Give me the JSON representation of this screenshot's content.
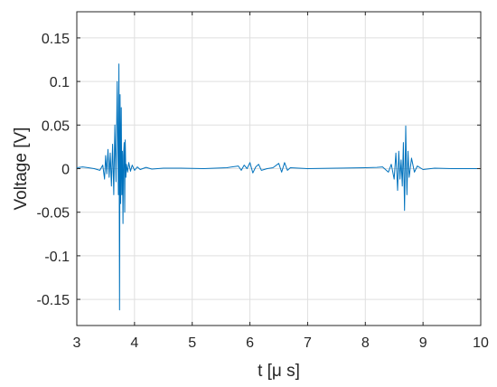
{
  "chart_data": {
    "type": "line",
    "title": "",
    "xlabel": "t [μ s]",
    "ylabel": "Voltage [V]",
    "xlim": [
      3,
      10
    ],
    "ylim": [
      -0.18,
      0.18
    ],
    "grid": true,
    "line_color": "#0072BD",
    "x_ticks": [
      3,
      4,
      5,
      6,
      7,
      8,
      9,
      10
    ],
    "x_tick_labels": [
      "3",
      "4",
      "5",
      "6",
      "7",
      "8",
      "9",
      "10"
    ],
    "y_ticks": [
      0.15,
      0.1,
      0.05,
      0,
      -0.05,
      -0.1,
      -0.15
    ],
    "y_tick_labels": [
      "0.15",
      "0.1",
      "0.05",
      "0",
      "-0.05",
      "-0.1",
      "-0.15"
    ],
    "series": [
      {
        "x": [
          3.0,
          3.1,
          3.2,
          3.3,
          3.4,
          3.45,
          3.48,
          3.5,
          3.52,
          3.54,
          3.56,
          3.58,
          3.6,
          3.62,
          3.64,
          3.66,
          3.68,
          3.7,
          3.72,
          3.73,
          3.74,
          3.75,
          3.76,
          3.77,
          3.78,
          3.79,
          3.8,
          3.81,
          3.82,
          3.83,
          3.84,
          3.85,
          3.86,
          3.88,
          3.9,
          3.93,
          3.96,
          4.0,
          4.05,
          4.1,
          4.2,
          4.3,
          4.5,
          4.8,
          5.2,
          5.6,
          5.8,
          5.85,
          5.9,
          5.95,
          6.0,
          6.05,
          6.1,
          6.15,
          6.2,
          6.3,
          6.4,
          6.5,
          6.55,
          6.6,
          6.65,
          6.7,
          7.0,
          7.5,
          8.0,
          8.2,
          8.3,
          8.4,
          8.45,
          8.5,
          8.53,
          8.56,
          8.58,
          8.6,
          8.62,
          8.64,
          8.66,
          8.68,
          8.7,
          8.72,
          8.74,
          8.76,
          8.8,
          8.85,
          8.9,
          9.0,
          9.2,
          9.5,
          10.0
        ],
        "y": [
          0.001,
          0.002,
          0.001,
          0.0,
          -0.002,
          0.004,
          -0.012,
          0.015,
          -0.006,
          0.022,
          -0.01,
          0.018,
          -0.02,
          0.028,
          -0.03,
          0.05,
          -0.015,
          0.1,
          -0.03,
          0.12,
          -0.162,
          0.085,
          -0.04,
          0.07,
          -0.03,
          0.02,
          -0.063,
          0.015,
          0.03,
          -0.05,
          0.033,
          -0.01,
          0.005,
          -0.004,
          0.007,
          -0.003,
          0.004,
          -0.002,
          0.002,
          -0.001,
          0.0015,
          -0.0005,
          0.0005,
          0.0005,
          0.0,
          0.001,
          0.003,
          -0.002,
          0.004,
          0.0,
          0.007,
          -0.005,
          0.002,
          0.005,
          -0.002,
          0.0,
          0.001,
          0.006,
          -0.004,
          0.007,
          -0.002,
          0.001,
          0.0,
          0.0005,
          0.001,
          0.0015,
          0.002,
          -0.004,
          0.005,
          -0.012,
          0.018,
          -0.025,
          0.02,
          -0.012,
          0.01,
          -0.02,
          0.03,
          -0.048,
          0.049,
          -0.03,
          0.02,
          -0.01,
          0.012,
          -0.004,
          0.003,
          -0.001,
          0.0005,
          0.0,
          0.0
        ]
      }
    ]
  }
}
